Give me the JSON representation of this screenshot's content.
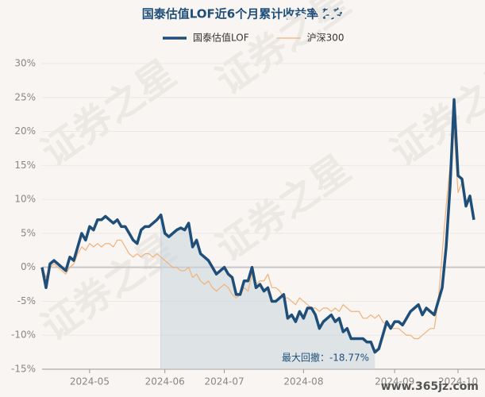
{
  "chart_data": {
    "type": "line",
    "title": "国泰估值LOF近6个月累计收益率走势",
    "annotation": "最大回撤：-18.77%",
    "watermark": "www.365jz.com",
    "watermark_big": "证券之星",
    "categories": [
      null,
      null,
      null,
      null,
      null,
      null,
      null,
      null,
      null,
      null,
      null,
      null,
      "2024-05",
      null,
      null,
      null,
      null,
      null,
      null,
      null,
      null,
      null,
      null,
      null,
      null,
      null,
      null,
      null,
      null,
      null,
      null,
      "2024-06",
      null,
      null,
      null,
      null,
      null,
      null,
      null,
      null,
      null,
      null,
      null,
      null,
      null,
      null,
      "2024-07",
      null,
      null,
      null,
      null,
      null,
      null,
      null,
      null,
      null,
      null,
      null,
      null,
      null,
      null,
      null,
      null,
      null,
      null,
      null,
      "2024-08",
      null,
      null,
      null,
      null,
      null,
      null,
      null,
      null,
      null,
      null,
      null,
      null,
      null,
      null,
      null,
      null,
      null,
      null,
      null,
      null,
      null,
      null,
      "2024-09",
      null,
      null,
      null,
      null,
      null,
      null,
      null,
      null,
      null,
      null,
      null,
      null,
      null,
      null,
      null,
      "2024-10",
      null,
      null,
      null,
      null
    ],
    "series": [
      {
        "name": "国泰估值LOF",
        "color": "#1f4e79",
        "values": [
          0,
          -3,
          0.5,
          1,
          0.5,
          0,
          -0.5,
          1.5,
          1,
          3,
          5,
          4,
          6,
          5.5,
          7,
          7,
          7.5,
          7,
          6.5,
          7,
          6,
          6,
          5,
          4,
          3.5,
          5.5,
          6,
          6,
          6.5,
          7,
          7.7,
          5,
          4.5,
          5,
          5.5,
          5.8,
          5.5,
          6.5,
          3,
          4,
          2,
          1.5,
          1,
          0,
          -1,
          -0.5,
          0,
          -1,
          -1.5,
          -4,
          -4,
          -2,
          -2,
          0,
          -3,
          -2.5,
          -3.5,
          -3,
          -5,
          -5,
          -4.5,
          -4,
          -7.5,
          -7,
          -8,
          -6.5,
          -7.5,
          -6,
          -6,
          -7,
          -9,
          -8,
          -7.5,
          -7,
          -8,
          -7.5,
          -9.5,
          -9,
          -10.5,
          -10.5,
          -10.5,
          -10.5,
          -11,
          -11,
          -12.5,
          -12,
          -10,
          -8,
          -9,
          -8,
          -8,
          -8.5,
          -7.5,
          -6.5,
          -6,
          -5.5,
          -7,
          -6,
          -6.5,
          -7,
          -5,
          -3,
          3,
          12,
          24.7,
          13.5,
          13,
          9,
          10.5,
          7
        ]
      },
      {
        "name": "沪深300",
        "color": "#f0b27a",
        "values": [
          0,
          -1.5,
          0,
          0.5,
          0,
          -0.5,
          -1,
          0,
          0.5,
          2,
          3,
          2.5,
          3.5,
          3,
          3.5,
          3,
          3.5,
          3.5,
          3,
          4,
          4,
          3,
          2,
          1.5,
          2,
          1.5,
          2,
          2,
          1.5,
          2,
          1.5,
          1,
          0.5,
          0,
          0,
          -0.5,
          -0.5,
          0,
          -1.5,
          -1,
          -2,
          -2.5,
          -2,
          -3,
          -3.5,
          -3,
          -2.5,
          -3,
          -4,
          -4.5,
          -4,
          -3,
          -3.5,
          -1,
          -2.5,
          -2,
          -2,
          -1,
          -3,
          -3,
          -3.5,
          -4.5,
          -4.5,
          -5,
          -5.5,
          -4.5,
          -5,
          -5.5,
          -6,
          -6,
          -6.5,
          -6,
          -6,
          -6.5,
          -6,
          -6.5,
          -5.5,
          -6,
          -6.5,
          -6.5,
          -6.5,
          -7.5,
          -7.5,
          -7,
          -7.5,
          -7,
          -8,
          -8.5,
          -9,
          -9,
          -9,
          -9.5,
          -10,
          -10,
          -10.5,
          -10.5,
          -10,
          -9.5,
          -9,
          -9,
          -5,
          2,
          9,
          15,
          20,
          11,
          12.5,
          9,
          10,
          8
        ]
      }
    ],
    "ylim": [
      -15,
      30
    ],
    "yticks": [
      {
        "value": -15,
        "label": "-15%"
      },
      {
        "value": -10,
        "label": "-10%"
      },
      {
        "value": -5,
        "label": "-5%"
      },
      {
        "value": 0,
        "label": "0%"
      },
      {
        "value": 5,
        "label": "5%"
      },
      {
        "value": 10,
        "label": "10%"
      },
      {
        "value": 15,
        "label": "15%"
      },
      {
        "value": 20,
        "label": "20%"
      },
      {
        "value": 25,
        "label": "25%"
      },
      {
        "value": 30,
        "label": "30%"
      }
    ],
    "grid": true
  }
}
